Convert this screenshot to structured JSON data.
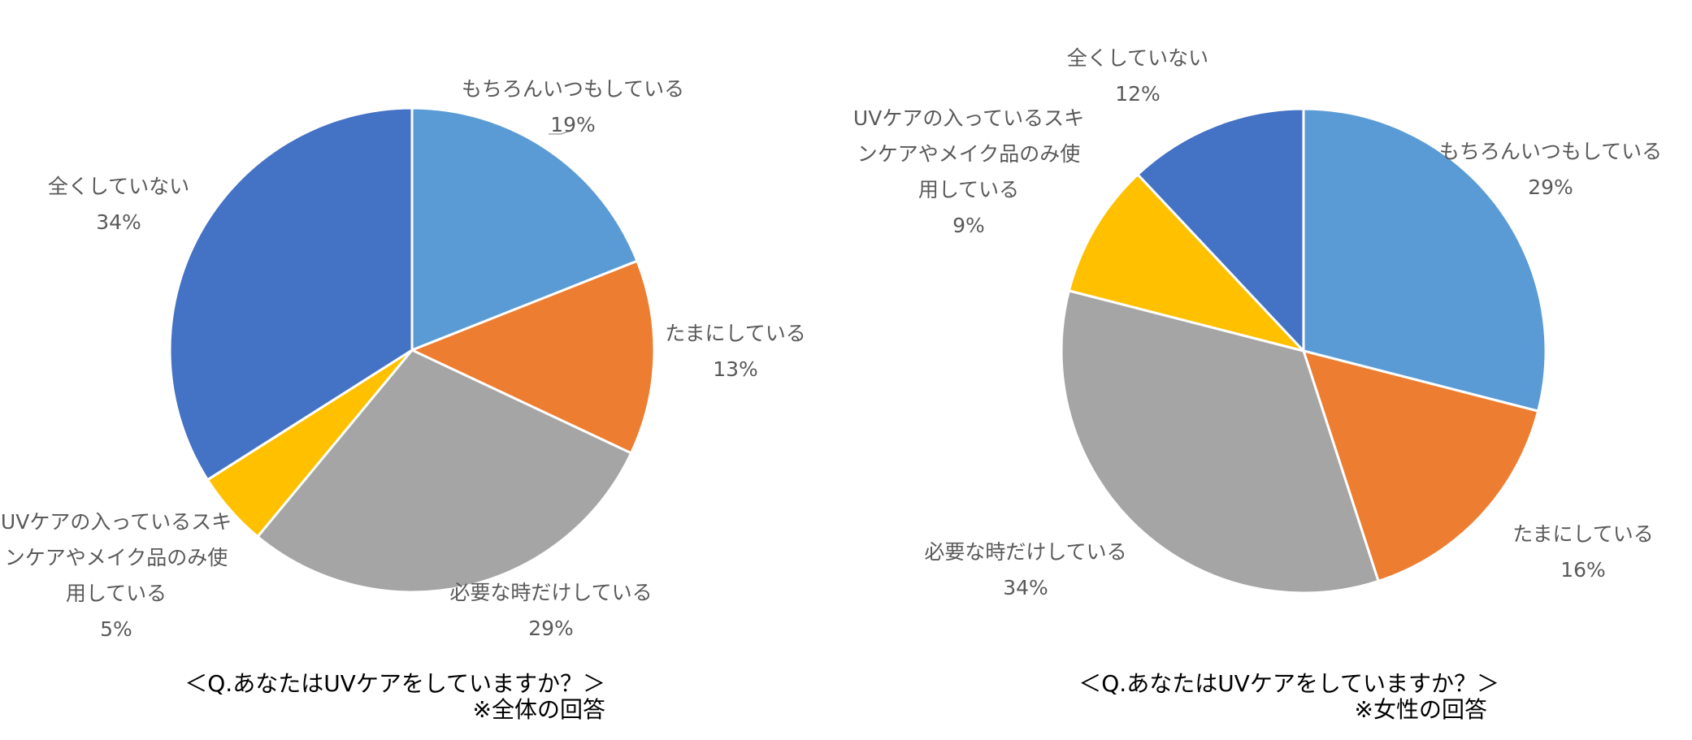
{
  "chart_data": [
    {
      "type": "pie",
      "categories": [
        "もちろんいつもしている",
        "たまにしている",
        "必要な時だけしている",
        "UVケアの入っているスキンケアやメイク品のみ使用している",
        "全くしていない"
      ],
      "values": [
        19,
        13,
        29,
        5,
        34
      ],
      "percent_labels": [
        "19%",
        "13%",
        "29%",
        "5%",
        "34%"
      ],
      "label_lines": [
        [
          "もちろんいつもしている"
        ],
        [
          "たまにしている"
        ],
        [
          "必要な時だけしている"
        ],
        [
          "UVケアの入っているスキ",
          "ンケアやメイク品のみ使",
          "用している"
        ],
        [
          "全くしていない"
        ]
      ],
      "colors": [
        "#5B9BD5",
        "#ED7D31",
        "#A5A5A5",
        "#FFC000",
        "#4472C4"
      ],
      "caption": "＜Q.あなたはUVケアをしていますか？＞",
      "note": "※全体の回答",
      "legend": "none"
    },
    {
      "type": "pie",
      "categories": [
        "もちろんいつもしている",
        "たまにしている",
        "必要な時だけしている",
        "UVケアの入っているスキンケアやメイク品のみ使用している",
        "全くしていない"
      ],
      "values": [
        29,
        16,
        34,
        9,
        12
      ],
      "percent_labels": [
        "29%",
        "16%",
        "34%",
        "9%",
        "12%"
      ],
      "label_lines": [
        [
          "もちろんいつもしている"
        ],
        [
          "たまにしている"
        ],
        [
          "必要な時だけしている"
        ],
        [
          "UVケアの入っているスキ",
          "ンケアやメイク品のみ使",
          "用している"
        ],
        [
          "全くしていない"
        ]
      ],
      "colors": [
        "#5B9BD5",
        "#ED7D31",
        "#A5A5A5",
        "#FFC000",
        "#4472C4"
      ],
      "caption": "＜Q.あなたはUVケアをしていますか？＞",
      "note": "※女性の回答",
      "legend": "none"
    }
  ]
}
